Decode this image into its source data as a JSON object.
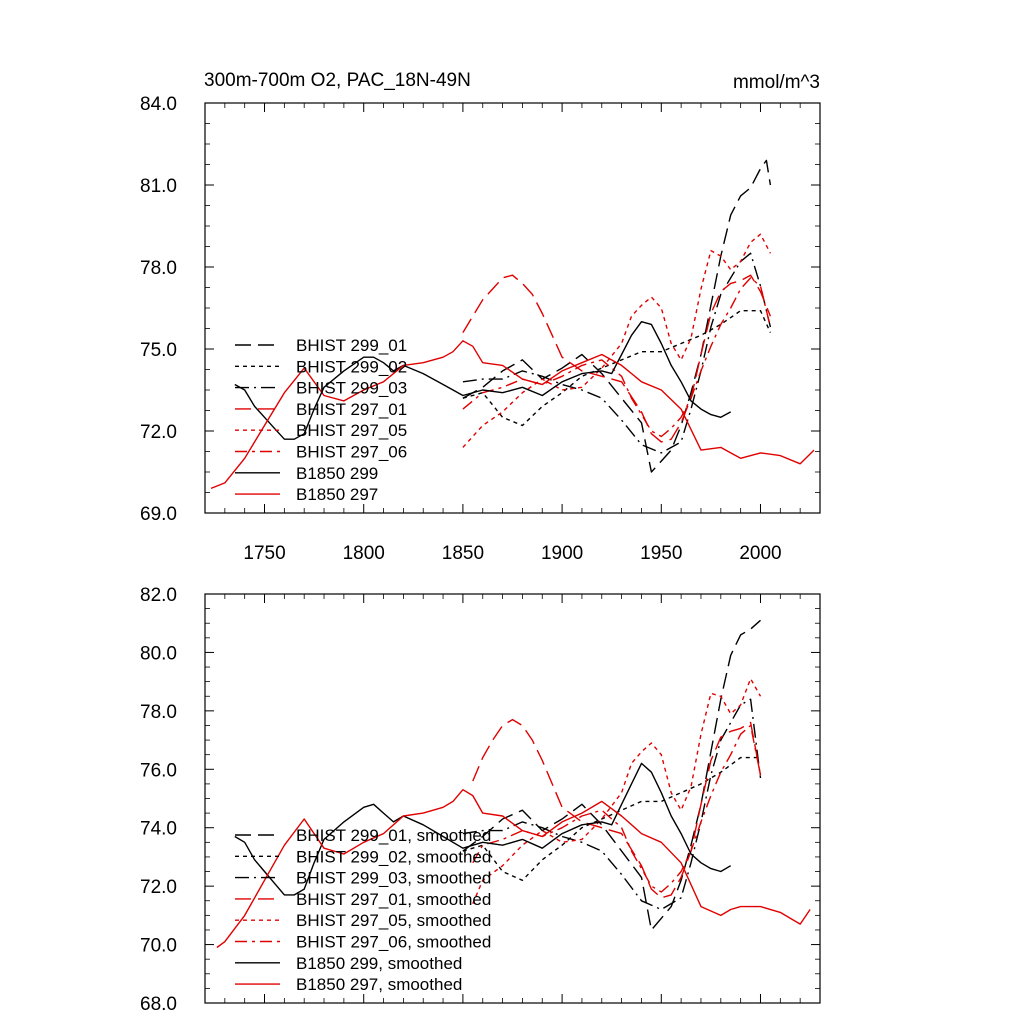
{
  "chart_data": [
    {
      "type": "line",
      "title": "300m-700m O2, PAC_18N-49N",
      "units_label": "mmol/m^3",
      "xlim": [
        1720,
        2030
      ],
      "ylim": [
        69.0,
        84.0
      ],
      "yticks": [
        69.0,
        72.0,
        75.0,
        78.0,
        81.0,
        84.0
      ],
      "ytick_labels": [
        "69.0",
        "72.0",
        "75.0",
        "78.0",
        "81.0",
        "84.0"
      ],
      "xticks": [
        1750,
        1800,
        1850,
        1900,
        1950,
        2000
      ],
      "xtick_labels": [
        "1750",
        "1800",
        "1850",
        "1900",
        "1950",
        "2000"
      ],
      "grid": false,
      "legend_position": "left",
      "series": [
        {
          "name": "BHIST 299_01",
          "color": "#000000",
          "dash": "long",
          "x": [
            1850,
            1860,
            1870,
            1880,
            1890,
            1900,
            1910,
            1920,
            1930,
            1940,
            1945,
            1950,
            1955,
            1960,
            1965,
            1970,
            1975,
            1980,
            1985,
            1990,
            1995,
            2000,
            2003,
            2005
          ],
          "y": [
            73.2,
            73.6,
            74.2,
            74.6,
            73.9,
            74.3,
            74.8,
            74.1,
            73.2,
            72.3,
            70.5,
            70.9,
            71.3,
            72.2,
            73.4,
            74.8,
            76.6,
            78.4,
            79.9,
            80.6,
            80.9,
            81.6,
            81.9,
            81.0
          ]
        },
        {
          "name": "BHIST 299_02",
          "color": "#000000",
          "dash": "short",
          "x": [
            1850,
            1860,
            1870,
            1880,
            1890,
            1900,
            1910,
            1920,
            1930,
            1940,
            1950,
            1960,
            1970,
            1980,
            1990,
            2000,
            2005
          ],
          "y": [
            73.2,
            73.4,
            72.5,
            72.2,
            72.9,
            73.4,
            74.0,
            74.3,
            74.6,
            74.9,
            74.9,
            75.2,
            75.5,
            75.9,
            76.4,
            76.4,
            75.6
          ]
        },
        {
          "name": "BHIST 299_03",
          "color": "#000000",
          "dash": "longdot",
          "x": [
            1850,
            1860,
            1870,
            1880,
            1890,
            1900,
            1910,
            1920,
            1930,
            1940,
            1950,
            1960,
            1965,
            1970,
            1975,
            1980,
            1985,
            1990,
            1995,
            2000,
            2005
          ],
          "y": [
            73.8,
            73.9,
            73.9,
            74.2,
            74.0,
            73.7,
            73.5,
            73.2,
            72.4,
            71.5,
            71.2,
            71.6,
            72.8,
            74.2,
            75.8,
            77.0,
            77.6,
            78.2,
            78.5,
            77.3,
            75.8
          ]
        },
        {
          "name": "BHIST 297_01",
          "color": "#e00000",
          "dash": "long",
          "x": [
            1850,
            1855,
            1860,
            1865,
            1870,
            1875,
            1880,
            1885,
            1890,
            1895,
            1900,
            1910,
            1920,
            1930,
            1940,
            1945,
            1950,
            1955,
            1960,
            1965,
            1970,
            1975,
            1980,
            1985,
            1990,
            1995,
            2000,
            2005
          ],
          "y": [
            75.6,
            76.2,
            76.8,
            77.2,
            77.6,
            77.7,
            77.4,
            77.0,
            76.3,
            75.5,
            74.7,
            74.2,
            74.0,
            73.8,
            72.7,
            71.9,
            71.6,
            71.7,
            72.3,
            73.2,
            74.8,
            76.3,
            77.1,
            77.4,
            77.5,
            77.7,
            77.1,
            76.2
          ]
        },
        {
          "name": "BHIST 297_05",
          "color": "#e00000",
          "dash": "short",
          "x": [
            1850,
            1860,
            1870,
            1880,
            1890,
            1900,
            1910,
            1920,
            1930,
            1935,
            1940,
            1945,
            1950,
            1955,
            1960,
            1965,
            1970,
            1975,
            1980,
            1985,
            1990,
            1995,
            2000,
            2005
          ],
          "y": [
            71.4,
            72.2,
            72.7,
            73.4,
            73.9,
            73.5,
            73.6,
            74.3,
            75.2,
            76.2,
            76.6,
            76.9,
            76.5,
            75.2,
            74.6,
            75.4,
            77.2,
            78.6,
            78.4,
            77.9,
            78.2,
            78.9,
            79.2,
            78.5
          ]
        },
        {
          "name": "BHIST 297_06",
          "color": "#e00000",
          "dash": "dashdot",
          "x": [
            1850,
            1860,
            1870,
            1880,
            1890,
            1900,
            1910,
            1920,
            1930,
            1935,
            1940,
            1945,
            1950,
            1955,
            1960,
            1965,
            1970,
            1975,
            1980,
            1985,
            1990,
            1995,
            2000,
            2005
          ],
          "y": [
            72.8,
            73.4,
            73.6,
            73.9,
            73.7,
            74.0,
            74.4,
            74.6,
            74.0,
            73.2,
            72.6,
            72.0,
            71.8,
            72.1,
            72.5,
            73.2,
            74.2,
            75.1,
            75.9,
            76.5,
            77.2,
            77.6,
            77.3,
            75.8
          ]
        },
        {
          "name": "B1850 299",
          "color": "#000000",
          "dash": "solid",
          "x": [
            1735,
            1740,
            1745,
            1750,
            1755,
            1760,
            1765,
            1770,
            1775,
            1780,
            1790,
            1800,
            1805,
            1810,
            1815,
            1820,
            1830,
            1840,
            1850,
            1860,
            1870,
            1880,
            1890,
            1900,
            1910,
            1920,
            1925,
            1930,
            1935,
            1940,
            1945,
            1950,
            1955,
            1960,
            1965,
            1970,
            1975,
            1980,
            1985
          ],
          "y": [
            73.7,
            73.5,
            72.9,
            72.5,
            72.1,
            71.7,
            71.7,
            71.9,
            72.8,
            73.6,
            74.2,
            74.7,
            74.7,
            74.5,
            74.2,
            74.4,
            74.1,
            73.7,
            73.3,
            73.5,
            73.4,
            73.6,
            73.3,
            73.8,
            74.1,
            74.2,
            74.1,
            74.8,
            75.5,
            76.0,
            75.9,
            75.2,
            74.4,
            73.8,
            73.1,
            72.8,
            72.6,
            72.5,
            72.7
          ]
        },
        {
          "name": "B1850 297",
          "color": "#e00000",
          "dash": "solid",
          "x": [
            1723,
            1730,
            1740,
            1750,
            1760,
            1770,
            1780,
            1790,
            1800,
            1810,
            1820,
            1830,
            1840,
            1845,
            1850,
            1855,
            1860,
            1870,
            1880,
            1890,
            1900,
            1910,
            1920,
            1930,
            1940,
            1950,
            1960,
            1970,
            1980,
            1985,
            1990,
            2000,
            2010,
            2020,
            2027
          ],
          "y": [
            69.9,
            70.1,
            71.0,
            72.2,
            73.4,
            74.3,
            73.3,
            73.1,
            73.5,
            73.8,
            74.4,
            74.5,
            74.7,
            74.9,
            75.3,
            75.1,
            74.5,
            74.4,
            73.9,
            73.7,
            74.2,
            74.5,
            74.8,
            74.4,
            73.8,
            73.5,
            72.8,
            71.3,
            71.4,
            71.2,
            71.0,
            71.2,
            71.1,
            70.8,
            71.3
          ]
        }
      ]
    },
    {
      "type": "line",
      "xlim": [
        1720,
        2030
      ],
      "ylim": [
        68.0,
        82.0
      ],
      "yticks": [
        68.0,
        70.0,
        72.0,
        74.0,
        76.0,
        78.0,
        80.0,
        82.0
      ],
      "ytick_labels": [
        "68.0",
        "70.0",
        "72.0",
        "74.0",
        "76.0",
        "78.0",
        "80.0",
        "82.0"
      ],
      "grid": false,
      "legend_position": "left",
      "series": [
        {
          "name": "BHIST 299_01, smoothed",
          "color": "#000000",
          "dash": "long",
          "x": [
            1850,
            1860,
            1870,
            1880,
            1890,
            1900,
            1910,
            1920,
            1930,
            1940,
            1945,
            1950,
            1955,
            1960,
            1965,
            1970,
            1975,
            1980,
            1985,
            1990,
            1995,
            2000
          ],
          "y": [
            73.2,
            73.7,
            74.3,
            74.6,
            73.9,
            74.3,
            74.8,
            74.1,
            73.2,
            72.3,
            70.5,
            70.9,
            71.3,
            72.2,
            73.4,
            74.8,
            76.6,
            78.4,
            79.9,
            80.6,
            80.8,
            81.1
          ]
        },
        {
          "name": "BHIST 299_02, smoothed",
          "color": "#000000",
          "dash": "short",
          "x": [
            1850,
            1860,
            1870,
            1880,
            1890,
            1900,
            1910,
            1920,
            1930,
            1940,
            1950,
            1960,
            1970,
            1980,
            1990,
            2000
          ],
          "y": [
            73.2,
            73.4,
            72.5,
            72.2,
            72.9,
            73.4,
            74.0,
            74.3,
            74.6,
            74.9,
            74.9,
            75.2,
            75.5,
            75.9,
            76.4,
            76.4
          ]
        },
        {
          "name": "BHIST 299_03, smoothed",
          "color": "#000000",
          "dash": "longdot",
          "x": [
            1850,
            1860,
            1870,
            1880,
            1890,
            1900,
            1910,
            1920,
            1930,
            1940,
            1950,
            1960,
            1965,
            1970,
            1975,
            1980,
            1985,
            1990,
            1995,
            2000
          ],
          "y": [
            73.8,
            73.9,
            73.9,
            74.2,
            74.0,
            73.7,
            73.5,
            73.2,
            72.4,
            71.5,
            71.2,
            71.6,
            72.8,
            74.2,
            75.8,
            77.0,
            77.6,
            78.2,
            78.4,
            75.7
          ]
        },
        {
          "name": "BHIST 297_01, smoothed",
          "color": "#e00000",
          "dash": "long",
          "x": [
            1855,
            1860,
            1865,
            1870,
            1875,
            1880,
            1885,
            1890,
            1895,
            1900,
            1910,
            1920,
            1930,
            1940,
            1945,
            1950,
            1955,
            1960,
            1965,
            1970,
            1975,
            1980,
            1985,
            1990,
            1995,
            2000
          ],
          "y": [
            75.6,
            76.4,
            77.0,
            77.5,
            77.7,
            77.5,
            77.0,
            76.3,
            75.5,
            74.7,
            74.2,
            74.0,
            73.8,
            72.7,
            71.9,
            71.6,
            71.7,
            72.3,
            73.2,
            74.8,
            76.3,
            77.1,
            77.3,
            77.4,
            77.6,
            75.8
          ]
        },
        {
          "name": "BHIST 297_05, smoothed",
          "color": "#e00000",
          "dash": "short",
          "x": [
            1855,
            1860,
            1870,
            1880,
            1890,
            1900,
            1910,
            1920,
            1930,
            1935,
            1940,
            1945,
            1950,
            1955,
            1960,
            1965,
            1970,
            1975,
            1980,
            1985,
            1990,
            1995,
            2000
          ],
          "y": [
            71.4,
            72.2,
            72.7,
            73.4,
            73.9,
            73.5,
            73.6,
            74.3,
            75.2,
            76.2,
            76.6,
            76.9,
            76.5,
            75.2,
            74.6,
            75.4,
            77.2,
            78.6,
            78.5,
            77.9,
            78.2,
            79.1,
            78.5
          ]
        },
        {
          "name": "BHIST 297_06, smoothed",
          "color": "#e00000",
          "dash": "dashdot",
          "x": [
            1855,
            1860,
            1870,
            1880,
            1890,
            1900,
            1910,
            1920,
            1930,
            1935,
            1940,
            1945,
            1950,
            1955,
            1960,
            1965,
            1970,
            1975,
            1980,
            1985,
            1990,
            1995,
            2000
          ],
          "y": [
            72.8,
            73.4,
            73.6,
            73.9,
            73.7,
            74.0,
            74.4,
            74.6,
            74.0,
            73.2,
            72.6,
            72.0,
            71.8,
            72.1,
            72.5,
            73.2,
            74.2,
            75.1,
            75.9,
            76.5,
            77.2,
            77.5,
            75.8
          ]
        },
        {
          "name": "B1850 299, smoothed",
          "color": "#000000",
          "dash": "solid",
          "x": [
            1735,
            1740,
            1745,
            1750,
            1755,
            1760,
            1765,
            1770,
            1775,
            1780,
            1790,
            1800,
            1805,
            1810,
            1815,
            1820,
            1830,
            1840,
            1850,
            1860,
            1870,
            1880,
            1890,
            1900,
            1910,
            1920,
            1925,
            1930,
            1935,
            1940,
            1945,
            1950,
            1955,
            1960,
            1965,
            1970,
            1975,
            1980,
            1985
          ],
          "y": [
            73.7,
            73.5,
            72.9,
            72.5,
            72.1,
            71.7,
            71.7,
            71.9,
            72.8,
            73.6,
            74.2,
            74.7,
            74.8,
            74.5,
            74.2,
            74.4,
            74.1,
            73.7,
            73.3,
            73.5,
            73.4,
            73.6,
            73.3,
            73.8,
            74.1,
            74.2,
            74.1,
            74.8,
            75.5,
            76.2,
            75.9,
            75.2,
            74.4,
            73.8,
            73.1,
            72.8,
            72.6,
            72.5,
            72.7
          ]
        },
        {
          "name": "B1850 297, smoothed",
          "color": "#e00000",
          "dash": "solid",
          "x": [
            1726,
            1730,
            1740,
            1750,
            1760,
            1770,
            1780,
            1790,
            1800,
            1810,
            1820,
            1830,
            1840,
            1845,
            1850,
            1855,
            1860,
            1870,
            1880,
            1890,
            1900,
            1910,
            1920,
            1930,
            1940,
            1950,
            1960,
            1970,
            1980,
            1985,
            1990,
            2000,
            2010,
            2020,
            2025
          ],
          "y": [
            69.9,
            70.1,
            71.0,
            72.2,
            73.4,
            74.3,
            73.3,
            73.1,
            73.5,
            73.8,
            74.4,
            74.5,
            74.7,
            74.9,
            75.3,
            75.1,
            74.5,
            74.4,
            73.9,
            73.7,
            74.2,
            74.5,
            74.9,
            74.4,
            73.8,
            73.5,
            72.8,
            71.3,
            71.0,
            71.2,
            71.3,
            71.3,
            71.1,
            70.7,
            71.2
          ]
        }
      ]
    }
  ]
}
